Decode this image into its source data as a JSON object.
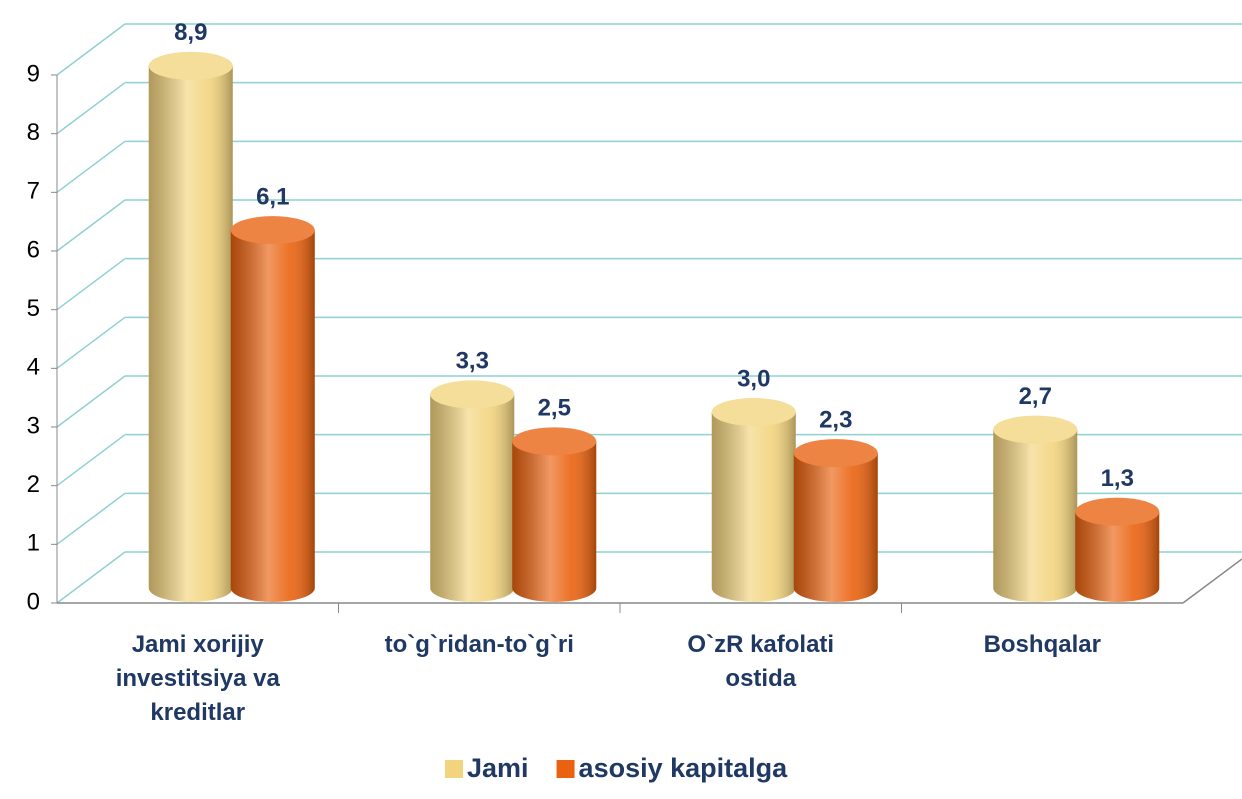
{
  "chart_data": {
    "type": "bar3d",
    "categories": [
      "Jami xorijiy investitsiya va kreditlar",
      "to`g`ridan-to`g`ri",
      "O`zR kafolati ostida",
      "Boshqalar"
    ],
    "series": [
      {
        "name": "Jami",
        "color": "#f3d47e",
        "values": [
          8.9,
          3.3,
          3.0,
          2.7
        ],
        "value_labels": [
          "8,9",
          "3,3",
          "3,0",
          "2,7"
        ]
      },
      {
        "name": "asosiy kapitalga",
        "color": "#ea620f",
        "values": [
          6.1,
          2.5,
          2.3,
          1.3
        ],
        "value_labels": [
          "6,1",
          "2,5",
          "2,3",
          "1,3"
        ]
      }
    ],
    "ylim": [
      0,
      9
    ],
    "yticks": [
      0,
      1,
      2,
      3,
      4,
      5,
      6,
      7,
      8,
      9
    ],
    "grid": true,
    "legend": "bottom"
  }
}
